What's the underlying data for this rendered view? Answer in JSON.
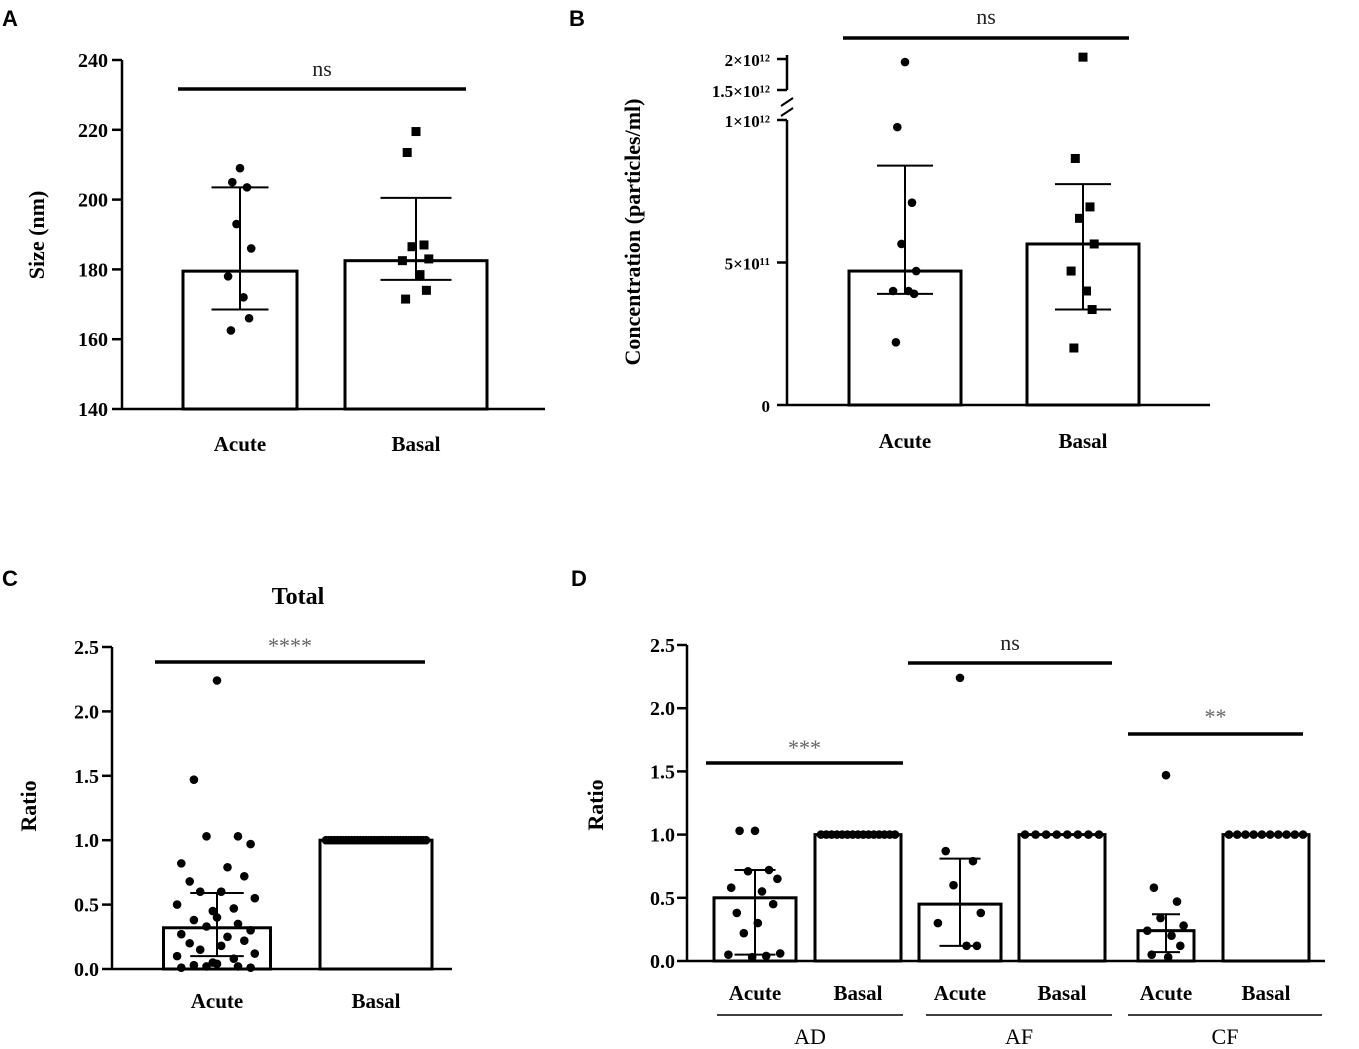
{
  "chart_data": [
    {
      "panel": "A",
      "type": "bar",
      "title": "",
      "xlabel": "",
      "ylabel": "Size (nm)",
      "ylim": [
        140,
        240
      ],
      "yticks": [
        140,
        160,
        180,
        200,
        220,
        240
      ],
      "categories": [
        "Acute",
        "Basal"
      ],
      "values": [
        179.5,
        182.5
      ],
      "error_low": [
        168.5,
        177
      ],
      "error_high": [
        203.5,
        200.5
      ],
      "points": [
        [
          209,
          205,
          203.5,
          193,
          186,
          178,
          172,
          166,
          162.5
        ],
        [
          219.5,
          213.5,
          187,
          186.5,
          183,
          182.5,
          178.5,
          174,
          171.5
        ]
      ],
      "markers": [
        "circle",
        "square"
      ],
      "significance": [
        {
          "label": "ns",
          "from": 0,
          "to": 1
        }
      ]
    },
    {
      "panel": "B",
      "type": "bar",
      "title": "",
      "xlabel": "",
      "ylabel": "Concentration (particles/ml)",
      "y_axis_break": [
        1000000000000,
        1500000000000
      ],
      "ylim": [
        0,
        2000000000000
      ],
      "yticks": [
        0,
        500000000000,
        1000000000000,
        1500000000000,
        2000000000000
      ],
      "ytick_labels": [
        "0",
        "5×10¹¹",
        "1×10¹²",
        "1.5×10¹²",
        "2×10¹²"
      ],
      "categories": [
        "Acute",
        "Basal"
      ],
      "values": [
        470000000000,
        565000000000
      ],
      "error_low": [
        390000000000,
        335000000000
      ],
      "error_high": [
        840000000000,
        775000000000
      ],
      "points": [
        [
          1950000000000,
          975000000000,
          710000000000,
          565000000000,
          470000000000,
          400000000000,
          400000000000,
          390000000000,
          220000000000
        ],
        [
          2030000000000,
          865000000000,
          695000000000,
          655000000000,
          565000000000,
          470000000000,
          400000000000,
          335000000000,
          200000000000
        ]
      ],
      "markers": [
        "circle",
        "square"
      ],
      "significance": [
        {
          "label": "ns",
          "from": 0,
          "to": 1
        }
      ]
    },
    {
      "panel": "C",
      "type": "bar",
      "title": "Total",
      "xlabel": "",
      "ylabel": "Ratio",
      "ylim": [
        0,
        2.5
      ],
      "yticks": [
        0.0,
        0.5,
        1.0,
        1.5,
        2.0,
        2.5
      ],
      "ytick_labels": [
        "0.0",
        "0.5",
        "1.0",
        "1.5",
        "2.0",
        "2.5"
      ],
      "categories": [
        "Acute",
        "Basal"
      ],
      "values": [
        0.32,
        1.0
      ],
      "error_low": [
        0.1,
        1.0
      ],
      "error_high": [
        0.59,
        1.0
      ],
      "points": [
        [
          2.24,
          1.47,
          1.03,
          1.03,
          0.97,
          0.82,
          0.79,
          0.72,
          0.68,
          0.6,
          0.6,
          0.55,
          0.5,
          0.47,
          0.45,
          0.4,
          0.38,
          0.35,
          0.33,
          0.3,
          0.27,
          0.25,
          0.22,
          0.2,
          0.18,
          0.15,
          0.12,
          0.1,
          0.08,
          0.05,
          0.04,
          0.03,
          0.02,
          0.02,
          0.01,
          0.01
        ],
        [
          1.0,
          1.0,
          1.0,
          1.0,
          1.0,
          1.0,
          1.0,
          1.0,
          1.0,
          1.0,
          1.0,
          1.0,
          1.0,
          1.0,
          1.0,
          1.0,
          1.0,
          1.0,
          1.0,
          1.0,
          1.0,
          1.0,
          1.0,
          1.0,
          1.0,
          1.0,
          1.0,
          1.0,
          1.0,
          1.0,
          1.0,
          1.0,
          1.0,
          1.0,
          1.0,
          1.0
        ]
      ],
      "markers": [
        "circle",
        "circle"
      ],
      "significance": [
        {
          "label": "****",
          "from": 0,
          "to": 1
        }
      ]
    },
    {
      "panel": "D",
      "type": "bar",
      "title": "",
      "xlabel": "",
      "ylabel": "Ratio",
      "ylim": [
        0,
        2.5
      ],
      "yticks": [
        0.0,
        0.5,
        1.0,
        1.5,
        2.0,
        2.5
      ],
      "ytick_labels": [
        "0.0",
        "0.5",
        "1.0",
        "1.5",
        "2.0",
        "2.5"
      ],
      "categories": [
        "Acute",
        "Basal",
        "Acute",
        "Basal",
        "Acute",
        "Basal"
      ],
      "groups": [
        {
          "label": "AD",
          "bars": [
            0,
            1
          ]
        },
        {
          "label": "AF",
          "bars": [
            2,
            3
          ]
        },
        {
          "label": "CF",
          "bars": [
            4,
            5
          ]
        }
      ],
      "values": [
        0.5,
        1.0,
        0.45,
        1.0,
        0.24,
        1.0
      ],
      "error_low": [
        0.05,
        1.0,
        0.12,
        1.0,
        0.07,
        1.0
      ],
      "error_high": [
        0.72,
        1.0,
        0.81,
        1.0,
        0.37,
        1.0
      ],
      "points": [
        [
          1.03,
          1.03,
          0.72,
          0.71,
          0.65,
          0.58,
          0.55,
          0.45,
          0.38,
          0.3,
          0.22,
          0.06,
          0.05,
          0.04,
          0.03
        ],
        [
          1.0,
          1.0,
          1.0,
          1.0,
          1.0,
          1.0,
          1.0,
          1.0,
          1.0,
          1.0,
          1.0,
          1.0,
          1.0,
          1.0,
          1.0
        ],
        [
          2.24,
          0.87,
          0.79,
          0.6,
          0.38,
          0.3,
          0.12,
          0.12
        ],
        [
          1.0,
          1.0,
          1.0,
          1.0,
          1.0,
          1.0,
          1.0,
          1.0
        ],
        [
          1.47,
          0.58,
          0.47,
          0.34,
          0.28,
          0.24,
          0.2,
          0.12,
          0.05,
          0.03
        ],
        [
          1.0,
          1.0,
          1.0,
          1.0,
          1.0,
          1.0,
          1.0,
          1.0,
          1.0,
          1.0
        ]
      ],
      "markers": [
        "circle",
        "circle",
        "circle",
        "circle",
        "circle",
        "circle"
      ],
      "significance": [
        {
          "label": "***",
          "from": 0,
          "to": 1
        },
        {
          "label": "ns",
          "from": 2,
          "to": 3
        },
        {
          "label": "**",
          "from": 4,
          "to": 5
        }
      ]
    }
  ]
}
